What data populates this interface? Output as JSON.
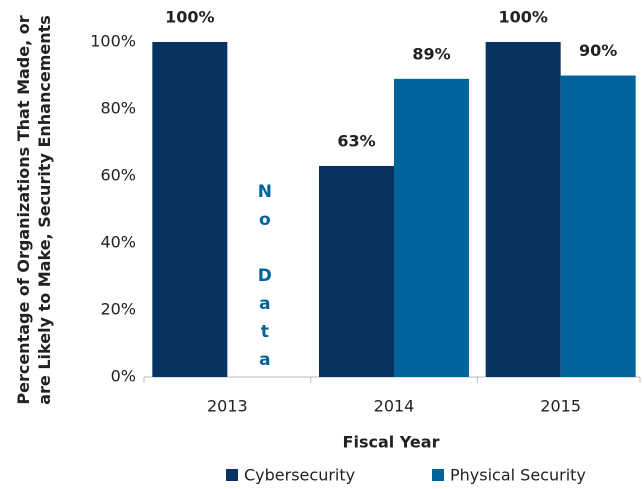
{
  "chart_data": {
    "type": "bar",
    "y_axis_label": [
      "Percentage of Organizations That Made, or",
      "are Likely to Make, Security Enhancements"
    ],
    "x_axis_label": "Fiscal Year",
    "categories": [
      "2013",
      "2014",
      "2015"
    ],
    "series": [
      {
        "name": "Cybersecurity",
        "color": "#06335f",
        "values": [
          100,
          63,
          100
        ],
        "value_labels": [
          "100%",
          "63%",
          "100%"
        ]
      },
      {
        "name": "Physical Security",
        "color": "#00649a",
        "values": [
          null,
          89,
          90
        ],
        "value_labels": [
          null,
          "89%",
          "90%"
        ]
      }
    ],
    "annotation": "No Data",
    "ylim": [
      0,
      100
    ],
    "yticks": [
      {
        "value": 0,
        "label": "0%"
      },
      {
        "value": 20,
        "label": "20%"
      },
      {
        "value": 40,
        "label": "40%"
      },
      {
        "value": 60,
        "label": "60%"
      },
      {
        "value": 80,
        "label": "80%"
      },
      {
        "value": 100,
        "label": "100%"
      }
    ],
    "grid": false,
    "legend": "bottom"
  }
}
